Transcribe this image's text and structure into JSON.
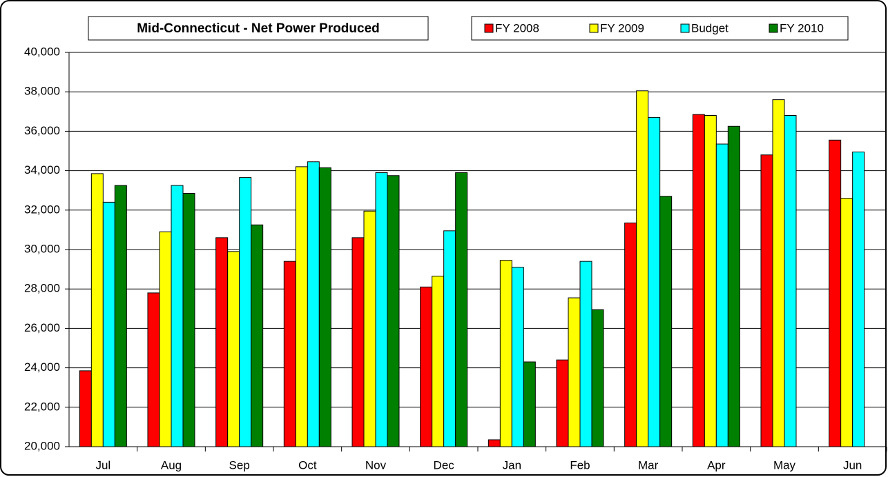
{
  "chart_data": {
    "type": "bar",
    "title": "Mid-Connecticut - Net Power Produced",
    "categories": [
      "Jul",
      "Aug",
      "Sep",
      "Oct",
      "Nov",
      "Dec",
      "Jan",
      "Feb",
      "Mar",
      "Apr",
      "May",
      "Jun"
    ],
    "series": [
      {
        "name": "FY 2008",
        "color": "#ff0000",
        "values": [
          23850,
          27800,
          30600,
          29400,
          30600,
          28100,
          20350,
          24400,
          31350,
          36850,
          34800,
          35550
        ]
      },
      {
        "name": "FY 2009",
        "color": "#ffff00",
        "values": [
          33850,
          30900,
          29900,
          34200,
          31950,
          28650,
          29450,
          27550,
          38050,
          36800,
          37600,
          32600
        ]
      },
      {
        "name": "Budget",
        "color": "#00ffff",
        "values": [
          32400,
          33250,
          33650,
          34450,
          33900,
          30950,
          29100,
          29400,
          36700,
          35350,
          36800,
          34950
        ]
      },
      {
        "name": "FY 2010",
        "color": "#008000",
        "values": [
          33250,
          32850,
          31250,
          34150,
          33750,
          33900,
          24300,
          26950,
          32700,
          36250,
          null,
          null
        ]
      }
    ],
    "ylim": [
      20000,
      40000
    ],
    "yticks": [
      {
        "value": 20000,
        "label": "20,000"
      },
      {
        "value": 22000,
        "label": "22,000"
      },
      {
        "value": 24000,
        "label": "24,000"
      },
      {
        "value": 26000,
        "label": "26,000"
      },
      {
        "value": 28000,
        "label": "28,000"
      },
      {
        "value": 30000,
        "label": "30,000"
      },
      {
        "value": 32000,
        "label": "32,000"
      },
      {
        "value": 34000,
        "label": "34,000"
      },
      {
        "value": 36000,
        "label": "36,000"
      },
      {
        "value": 38000,
        "label": "38,000"
      },
      {
        "value": 40000,
        "label": "40,000"
      }
    ],
    "grid": true
  }
}
